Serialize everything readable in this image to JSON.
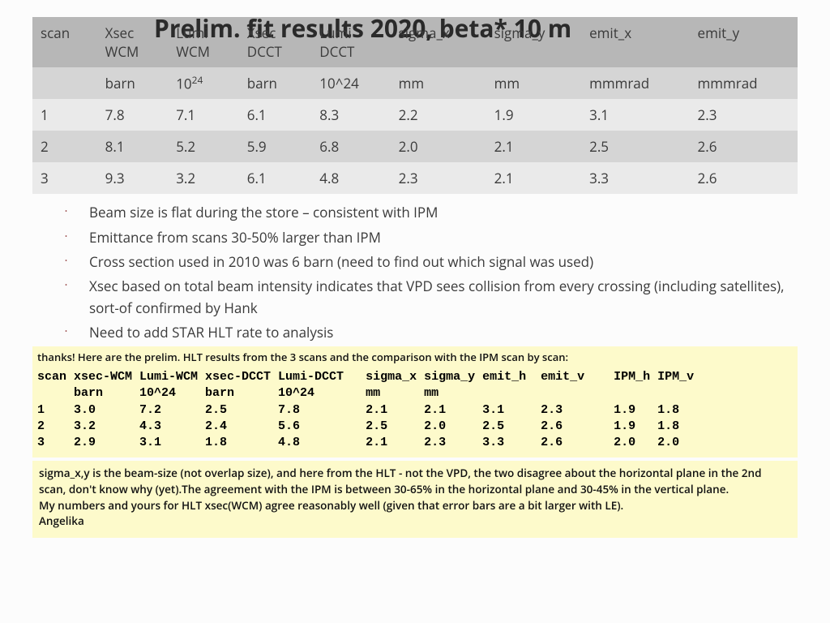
{
  "title": "Prelim. fit results 2020, beta* 10 m",
  "table1": {
    "headers": [
      "scan",
      "Xsec WCM",
      "Lumi WCM",
      "Xsec DCCT",
      "Lumi DCCT",
      "sigma_x",
      "sigma_y",
      "emit_x",
      "emit_y"
    ],
    "units": [
      "",
      "barn",
      "10^24",
      "barn",
      "10^24",
      "mm",
      "mm",
      "mmmrad",
      "mmmrad"
    ],
    "units_html_idx2": "10<sup>24</sup>",
    "rows": [
      [
        "1",
        "7.8",
        "7.1",
        "6.1",
        "8.3",
        "2.2",
        "1.9",
        "3.1",
        "2.3"
      ],
      [
        "2",
        "8.1",
        "5.2",
        "5.9",
        "6.8",
        "2.0",
        "2.1",
        "2.5",
        "2.6"
      ],
      [
        "3",
        "9.3",
        "3.2",
        "6.1",
        "4.8",
        "2.3",
        "2.1",
        "3.3",
        "2.6"
      ]
    ],
    "header_bg": "#b7b7b7",
    "alt_bg1": "#eaeaea",
    "alt_bg2": "#d5d5d5",
    "font_size": 17
  },
  "bullets": [
    "Beam size is flat during the store – consistent with IPM",
    "Emittance from scans 30-50% larger than IPM",
    "Cross section used in 2010 was 6 barn (need to find out which signal was used)",
    "Xsec based on  total beam intensity indicates that VPD sees collision from every crossing (including satellites), sort-of confirmed by Hank",
    "Need to add STAR HLT rate to analysis"
  ],
  "note": {
    "intro": "thanks! Here are the prelim. HLT results from the 3 scans and the comparison with the IPM scan by scan:",
    "mono_header": "scan xsec-WCM Lumi-WCM xsec-DCCT Lumi-DCCT   sigma_x sigma_y emit_h  emit_v    IPM_h IPM_v",
    "mono_units": "     barn     10^24    barn      10^24       mm      mm",
    "mono_rows": [
      "1    3.0      7.2      2.5       7.8         2.1     2.1     3.1     2.3       1.9   1.8",
      "2    3.2      4.3      2.4       5.6         2.5     2.0     2.5     2.6       1.9   1.8",
      "3    2.9      3.1      1.8       4.8         2.1     2.3     3.3     2.6       2.0   2.0"
    ],
    "foot": "sigma_x,y is the beam-size (not overlap size), and here from the HLT - not the VPD, the two disagree about the horizontal plane in the 2nd scan, don't know why (yet).The agreement with the IPM is between 30-65% in the horizontal plane and 30-45% in the vertical plane.\nMy numbers and yours for HLT xsec(WCM) agree reasonably well (given that error bars are a bit larger with LE).\nAngelika",
    "bg_color": "#fdfacb",
    "mono_font": "Courier New"
  }
}
